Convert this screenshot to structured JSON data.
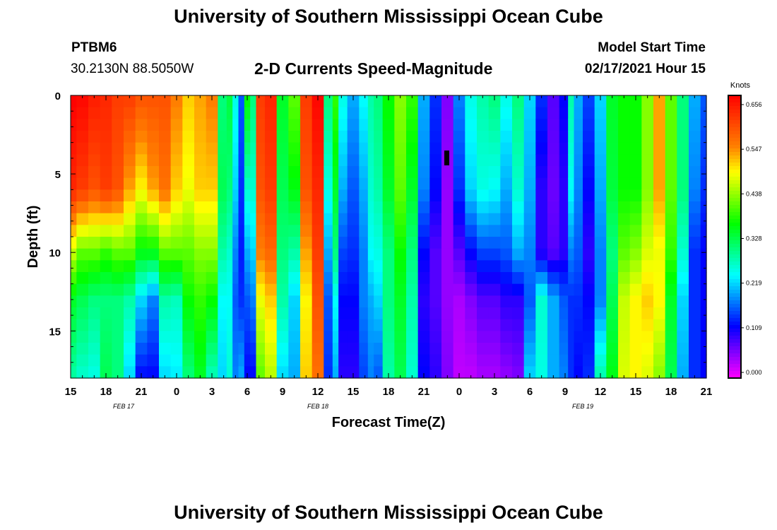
{
  "page": {
    "title_top": "University of Southern Mississippi Ocean Cube",
    "title_bottom": "University of Southern Mississippi Ocean Cube",
    "station_id": "PTBM6",
    "station_coords": "30.2130N 88.5050W",
    "plot_title": "2-D Currents Speed-Magnitude",
    "model_start_label": "Model Start Time",
    "model_start_value": "02/17/2021 Hour 15"
  },
  "chart_data": {
    "type": "heatmap",
    "title": "2-D Currents Speed-Magnitude",
    "xlabel": "Forecast Time(Z)",
    "ylabel": "Depth (ft)",
    "x_hours_from_start": [
      0,
      54
    ],
    "ylim": [
      0,
      18
    ],
    "y_ticks": [
      0,
      5,
      10,
      15
    ],
    "x_tick_labels": [
      "15",
      "18",
      "21",
      "0",
      "3",
      "6",
      "9",
      "12",
      "15",
      "18",
      "21",
      "0",
      "3",
      "6",
      "9",
      "12",
      "15",
      "18",
      "21"
    ],
    "date_labels": [
      {
        "text": "FEB 17",
        "hour": 4.5
      },
      {
        "text": "FEB 18",
        "hour": 21
      },
      {
        "text": "FEB 19",
        "hour": 43.5
      }
    ],
    "colorbar": {
      "unit": "Knots",
      "min": 0.0,
      "max": 0.656,
      "tick_values": [
        "0.656",
        "0.547",
        "0.438",
        "0.328",
        "0.219",
        "0.109",
        "0.000"
      ],
      "colors": [
        "#ff00ff",
        "#8000ff",
        "#0000ff",
        "#0080ff",
        "#00ffff",
        "#00ff80",
        "#00ff00",
        "#80ff00",
        "#ffff00",
        "#ff8000",
        "#ff4000",
        "#ff0000"
      ]
    },
    "depth_levels_ft": [
      0,
      6,
      10,
      13,
      18
    ],
    "time_columns": [
      {
        "h": 0.0,
        "v": [
          0.656,
          0.62,
          0.45,
          0.34,
          0.28
        ]
      },
      {
        "h": 1.0,
        "v": [
          0.65,
          0.6,
          0.4,
          0.32,
          0.26
        ]
      },
      {
        "h": 2.0,
        "v": [
          0.63,
          0.58,
          0.4,
          0.3,
          0.25
        ]
      },
      {
        "h": 3.0,
        "v": [
          0.62,
          0.6,
          0.38,
          0.3,
          0.32
        ]
      },
      {
        "h": 4.0,
        "v": [
          0.6,
          0.58,
          0.4,
          0.3,
          0.3
        ]
      },
      {
        "h": 5.0,
        "v": [
          0.6,
          0.52,
          0.4,
          0.28,
          0.22
        ]
      },
      {
        "h": 6.0,
        "v": [
          0.58,
          0.48,
          0.35,
          0.22,
          0.12
        ]
      },
      {
        "h": 7.0,
        "v": [
          0.58,
          0.52,
          0.35,
          0.18,
          0.12
        ]
      },
      {
        "h": 8.0,
        "v": [
          0.58,
          0.55,
          0.4,
          0.28,
          0.22
        ]
      },
      {
        "h": 9.0,
        "v": [
          0.54,
          0.5,
          0.4,
          0.27,
          0.23
        ]
      },
      {
        "h": 10.0,
        "v": [
          0.5,
          0.47,
          0.4,
          0.36,
          0.3
        ]
      },
      {
        "h": 11.0,
        "v": [
          0.52,
          0.5,
          0.42,
          0.38,
          0.34
        ]
      },
      {
        "h": 12.0,
        "v": [
          0.54,
          0.5,
          0.42,
          0.36,
          0.27
        ]
      },
      {
        "h": 13.0,
        "v": [
          0.3,
          0.32,
          0.28,
          0.24,
          0.22
        ]
      },
      {
        "h": 13.5,
        "v": [
          0.33,
          0.3,
          0.26,
          0.24,
          0.26
        ]
      },
      {
        "h": 14.0,
        "v": [
          0.25,
          0.22,
          0.18,
          0.16,
          0.18
        ]
      },
      {
        "h": 14.5,
        "v": [
          0.16,
          0.14,
          0.13,
          0.14,
          0.2
        ]
      },
      {
        "h": 15.0,
        "v": [
          0.36,
          0.26,
          0.2,
          0.16,
          0.12
        ]
      },
      {
        "h": 15.5,
        "v": [
          0.3,
          0.26,
          0.22,
          0.18,
          0.12
        ]
      },
      {
        "h": 16.0,
        "v": [
          0.6,
          0.58,
          0.54,
          0.47,
          0.4
        ]
      },
      {
        "h": 17.0,
        "v": [
          0.62,
          0.6,
          0.56,
          0.5,
          0.44
        ]
      },
      {
        "h": 18.0,
        "v": [
          0.34,
          0.32,
          0.3,
          0.28,
          0.22
        ]
      },
      {
        "h": 19.0,
        "v": [
          0.4,
          0.35,
          0.28,
          0.22,
          0.2
        ]
      },
      {
        "h": 20.0,
        "v": [
          0.6,
          0.58,
          0.52,
          0.48,
          0.5
        ]
      },
      {
        "h": 21.0,
        "v": [
          0.65,
          0.62,
          0.6,
          0.58,
          0.55
        ]
      },
      {
        "h": 22.0,
        "v": [
          0.3,
          0.25,
          0.2,
          0.16,
          0.14
        ]
      },
      {
        "h": 22.5,
        "v": [
          0.38,
          0.34,
          0.3,
          0.24,
          0.2
        ]
      },
      {
        "h": 23.0,
        "v": [
          0.25,
          0.2,
          0.15,
          0.12,
          0.1
        ]
      },
      {
        "h": 24.0,
        "v": [
          0.2,
          0.16,
          0.14,
          0.12,
          0.1
        ]
      },
      {
        "h": 25.0,
        "v": [
          0.24,
          0.2,
          0.18,
          0.18,
          0.15
        ]
      },
      {
        "h": 25.5,
        "v": [
          0.28,
          0.26,
          0.24,
          0.2,
          0.18
        ]
      },
      {
        "h": 26.0,
        "v": [
          0.3,
          0.28,
          0.25,
          0.22,
          0.16
        ]
      },
      {
        "h": 27.0,
        "v": [
          0.36,
          0.34,
          0.3,
          0.3,
          0.28
        ]
      },
      {
        "h": 28.0,
        "v": [
          0.42,
          0.4,
          0.36,
          0.34,
          0.32
        ]
      },
      {
        "h": 29.0,
        "v": [
          0.38,
          0.34,
          0.3,
          0.28,
          0.26
        ]
      },
      {
        "h": 30.0,
        "v": [
          0.2,
          0.18,
          0.12,
          0.1,
          0.12
        ]
      },
      {
        "h": 31.0,
        "v": [
          0.14,
          0.12,
          0.08,
          0.08,
          0.1
        ]
      },
      {
        "h": 32.0,
        "v": [
          0.06,
          0.05,
          0.05,
          0.05,
          0.06
        ]
      },
      {
        "h": 33.0,
        "v": [
          0.18,
          0.14,
          0.08,
          0.04,
          0.03
        ]
      },
      {
        "h": 34.0,
        "v": [
          0.25,
          0.22,
          0.12,
          0.06,
          0.03
        ]
      },
      {
        "h": 35.0,
        "v": [
          0.28,
          0.25,
          0.15,
          0.08,
          0.04
        ]
      },
      {
        "h": 36.0,
        "v": [
          0.3,
          0.24,
          0.15,
          0.08,
          0.04
        ]
      },
      {
        "h": 37.0,
        "v": [
          0.25,
          0.2,
          0.16,
          0.1,
          0.05
        ]
      },
      {
        "h": 38.0,
        "v": [
          0.3,
          0.26,
          0.2,
          0.1,
          0.06
        ]
      },
      {
        "h": 39.0,
        "v": [
          0.22,
          0.2,
          0.18,
          0.16,
          0.22
        ]
      },
      {
        "h": 40.0,
        "v": [
          0.14,
          0.1,
          0.1,
          0.26,
          0.25
        ]
      },
      {
        "h": 41.0,
        "v": [
          0.08,
          0.07,
          0.08,
          0.2,
          0.2
        ]
      },
      {
        "h": 42.0,
        "v": [
          0.12,
          0.1,
          0.1,
          0.16,
          0.18
        ]
      },
      {
        "h": 42.5,
        "v": [
          0.28,
          0.24,
          0.18,
          0.14,
          0.14
        ]
      },
      {
        "h": 43.0,
        "v": [
          0.2,
          0.18,
          0.16,
          0.14,
          0.12
        ]
      },
      {
        "h": 44.0,
        "v": [
          0.15,
          0.12,
          0.1,
          0.12,
          0.14
        ]
      },
      {
        "h": 45.0,
        "v": [
          0.22,
          0.2,
          0.18,
          0.18,
          0.28
        ]
      },
      {
        "h": 46.0,
        "v": [
          0.34,
          0.33,
          0.3,
          0.32,
          0.35
        ]
      },
      {
        "h": 47.0,
        "v": [
          0.36,
          0.36,
          0.4,
          0.45,
          0.46
        ]
      },
      {
        "h": 48.0,
        "v": [
          0.36,
          0.36,
          0.42,
          0.48,
          0.48
        ]
      },
      {
        "h": 49.0,
        "v": [
          0.42,
          0.42,
          0.46,
          0.5,
          0.46
        ]
      },
      {
        "h": 50.0,
        "v": [
          0.52,
          0.52,
          0.47,
          0.48,
          0.42
        ]
      },
      {
        "h": 51.0,
        "v": [
          0.4,
          0.4,
          0.38,
          0.34,
          0.32
        ]
      },
      {
        "h": 52.0,
        "v": [
          0.3,
          0.3,
          0.26,
          0.22,
          0.2
        ]
      },
      {
        "h": 53.0,
        "v": [
          0.2,
          0.18,
          0.14,
          0.14,
          0.14
        ]
      },
      {
        "h": 54.0,
        "v": [
          0.16,
          0.14,
          0.12,
          0.12,
          0.12
        ]
      }
    ]
  }
}
